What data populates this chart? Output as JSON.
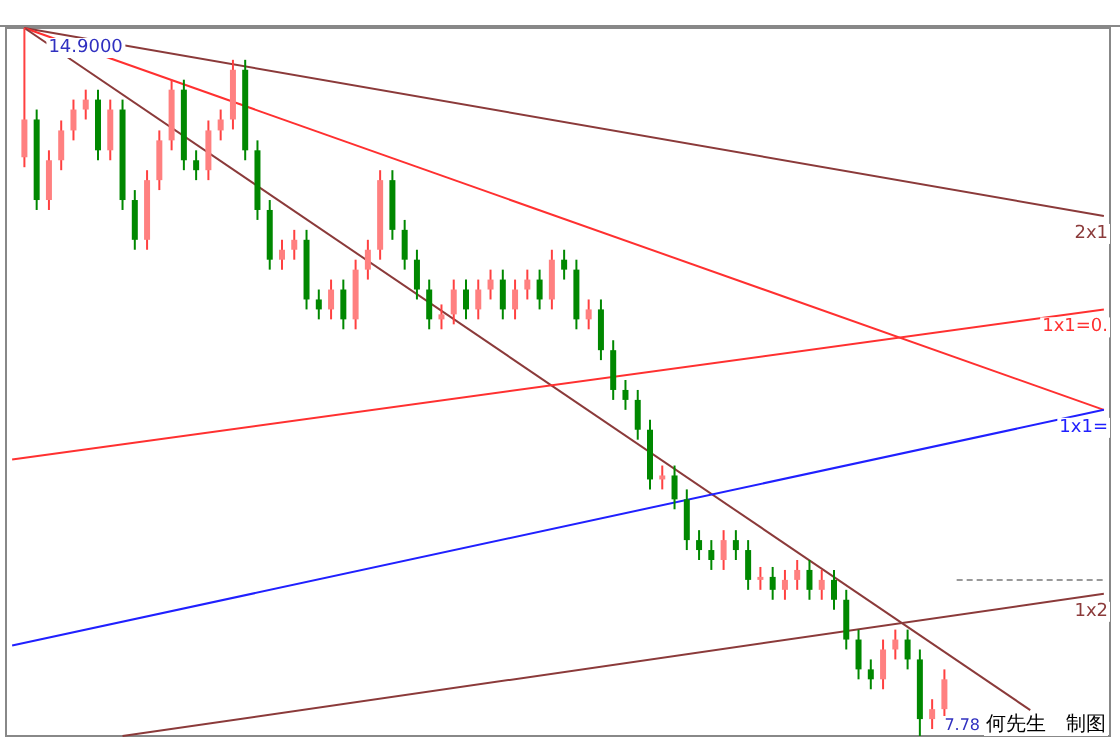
{
  "chart_data": {
    "type": "candlestick",
    "categories": [
      null,
      null,
      null,
      null,
      null,
      null,
      null,
      null,
      null,
      null,
      null,
      null,
      null,
      null,
      null,
      null,
      null,
      null,
      null,
      null,
      null,
      null,
      null,
      null,
      null,
      null,
      null,
      null,
      null,
      null,
      null,
      null,
      null,
      null,
      null,
      null,
      null,
      null,
      null,
      null,
      null,
      null,
      null,
      null,
      null,
      null,
      null,
      null,
      null,
      null,
      null,
      null,
      null,
      null,
      null,
      null,
      null,
      null,
      null,
      null,
      null,
      null,
      null,
      null,
      null,
      null,
      null,
      null,
      null,
      null,
      null,
      null,
      null,
      null,
      null,
      null,
      null,
      null,
      null,
      null,
      null,
      null,
      null,
      null,
      null,
      null,
      null,
      null,
      null,
      null
    ],
    "ylim": [
      7.78,
      14.9
    ],
    "ohlc": [
      null,
      [
        13.6,
        14.9,
        13.5,
        13.98
      ],
      [
        13.98,
        14.08,
        13.07,
        13.17
      ],
      [
        13.17,
        13.67,
        13.07,
        13.57
      ],
      [
        13.57,
        13.97,
        13.47,
        13.87
      ],
      [
        13.87,
        14.18,
        13.77,
        14.08
      ],
      [
        14.08,
        14.28,
        13.98,
        14.18
      ],
      [
        14.18,
        14.28,
        13.57,
        13.67
      ],
      [
        13.67,
        14.18,
        13.57,
        14.08
      ],
      [
        14.08,
        14.18,
        13.07,
        13.17
      ],
      [
        13.17,
        13.27,
        12.67,
        12.77
      ],
      [
        12.77,
        13.47,
        12.67,
        13.37
      ],
      [
        13.37,
        13.87,
        13.27,
        13.77
      ],
      [
        13.77,
        14.38,
        13.67,
        14.28
      ],
      [
        14.28,
        14.38,
        13.47,
        13.57
      ],
      [
        13.57,
        13.67,
        13.37,
        13.47
      ],
      [
        13.47,
        13.97,
        13.37,
        13.87
      ],
      [
        13.87,
        14.08,
        13.77,
        13.98
      ],
      [
        13.98,
        14.58,
        13.88,
        14.48
      ],
      [
        14.48,
        14.58,
        13.57,
        13.67
      ],
      [
        13.67,
        13.77,
        12.97,
        13.07
      ],
      [
        13.07,
        13.17,
        12.47,
        12.57
      ],
      [
        12.57,
        12.77,
        12.47,
        12.67
      ],
      [
        12.67,
        12.87,
        12.57,
        12.77
      ],
      [
        12.77,
        12.87,
        12.07,
        12.17
      ],
      [
        12.17,
        12.27,
        11.97,
        12.07
      ],
      [
        12.07,
        12.37,
        11.97,
        12.27
      ],
      [
        12.27,
        12.37,
        11.87,
        11.97
      ],
      [
        11.97,
        12.57,
        11.87,
        12.47
      ],
      [
        12.47,
        12.77,
        12.37,
        12.67
      ],
      [
        12.67,
        13.47,
        12.57,
        13.37
      ],
      [
        13.37,
        13.47,
        12.77,
        12.87
      ],
      [
        12.87,
        12.97,
        12.47,
        12.57
      ],
      [
        12.57,
        12.67,
        12.17,
        12.27
      ],
      [
        12.27,
        12.37,
        11.87,
        11.97
      ],
      [
        11.97,
        12.12,
        11.87,
        12.02
      ],
      [
        12.02,
        12.37,
        11.92,
        12.27
      ],
      [
        12.27,
        12.37,
        11.97,
        12.07
      ],
      [
        12.07,
        12.37,
        11.97,
        12.27
      ],
      [
        12.27,
        12.47,
        12.17,
        12.37
      ],
      [
        12.37,
        12.47,
        11.97,
        12.07
      ],
      [
        12.07,
        12.37,
        11.97,
        12.27
      ],
      [
        12.27,
        12.47,
        12.17,
        12.37
      ],
      [
        12.37,
        12.47,
        12.07,
        12.17
      ],
      [
        12.17,
        12.67,
        12.07,
        12.57
      ],
      [
        12.57,
        12.67,
        12.37,
        12.47
      ],
      [
        12.47,
        12.57,
        11.87,
        11.97
      ],
      [
        11.97,
        12.17,
        11.87,
        12.07
      ],
      [
        12.07,
        12.17,
        11.56,
        11.66
      ],
      [
        11.66,
        11.76,
        11.16,
        11.26
      ],
      [
        11.26,
        11.36,
        11.06,
        11.16
      ],
      [
        11.16,
        11.26,
        10.76,
        10.86
      ],
      [
        10.86,
        10.96,
        10.26,
        10.36
      ],
      [
        10.36,
        10.5,
        10.26,
        10.4
      ],
      [
        10.4,
        10.5,
        10.06,
        10.16
      ],
      [
        10.16,
        10.26,
        9.65,
        9.75
      ],
      [
        9.75,
        9.85,
        9.55,
        9.65
      ],
      [
        9.65,
        9.75,
        9.45,
        9.55
      ],
      [
        9.55,
        9.85,
        9.45,
        9.75
      ],
      [
        9.75,
        9.85,
        9.55,
        9.65
      ],
      [
        9.65,
        9.75,
        9.25,
        9.35
      ],
      [
        9.35,
        9.48,
        9.25,
        9.38
      ],
      [
        9.38,
        9.48,
        9.15,
        9.25
      ],
      [
        9.25,
        9.45,
        9.15,
        9.35
      ],
      [
        9.35,
        9.55,
        9.25,
        9.45
      ],
      [
        9.45,
        9.55,
        9.15,
        9.25
      ],
      [
        9.25,
        9.45,
        9.15,
        9.35
      ],
      [
        9.35,
        9.45,
        9.05,
        9.15
      ],
      [
        9.15,
        9.25,
        8.65,
        8.75
      ],
      [
        8.75,
        8.85,
        8.35,
        8.45
      ],
      [
        8.45,
        8.55,
        8.25,
        8.35
      ],
      [
        8.35,
        8.75,
        8.25,
        8.65
      ],
      [
        8.65,
        8.85,
        8.55,
        8.75
      ],
      [
        8.75,
        8.85,
        8.45,
        8.55
      ],
      [
        8.55,
        8.65,
        7.78,
        7.95
      ],
      [
        7.95,
        8.15,
        7.85,
        8.05
      ],
      [
        8.05,
        8.45,
        7.95,
        8.35
      ],
      null,
      null,
      null,
      null,
      null,
      null,
      null,
      null,
      null,
      null,
      null,
      null,
      null
    ],
    "series": [
      {
        "type": "line",
        "name": "2x1",
        "color": "#8b3a3a",
        "values": [
          null,
          14.9,
          null,
          null,
          null,
          null,
          null,
          null,
          null,
          null,
          null,
          null,
          null,
          null,
          null,
          null,
          null,
          null,
          null,
          null,
          null,
          null,
          null,
          null,
          null,
          null,
          null,
          null,
          null,
          null,
          null,
          null,
          null,
          null,
          null,
          null,
          null,
          null,
          null,
          null,
          null,
          null,
          null,
          null,
          null,
          null,
          null,
          null,
          null,
          null,
          null,
          null,
          null,
          null,
          null,
          null,
          null,
          null,
          null,
          null,
          null,
          null,
          null,
          null,
          null,
          null,
          null,
          null,
          null,
          null,
          null,
          null,
          null,
          null,
          null,
          null,
          null,
          null,
          null,
          null,
          null,
          null,
          null,
          null,
          null,
          null,
          null,
          null,
          null,
          13.01
        ]
      },
      {
        "type": "line",
        "color": "#ff3030",
        "values": [
          null,
          14.9,
          null,
          null,
          null,
          null,
          null,
          null,
          null,
          null,
          null,
          null,
          null,
          null,
          null,
          null,
          null,
          null,
          null,
          null,
          null,
          null,
          null,
          null,
          null,
          null,
          null,
          null,
          null,
          null,
          null,
          null,
          null,
          null,
          null,
          null,
          null,
          null,
          null,
          null,
          null,
          null,
          null,
          null,
          null,
          null,
          null,
          null,
          null,
          null,
          null,
          null,
          null,
          null,
          null,
          null,
          null,
          null,
          null,
          null,
          null,
          null,
          null,
          null,
          null,
          null,
          null,
          null,
          null,
          null,
          null,
          null,
          null,
          null,
          null,
          null,
          null,
          null,
          null,
          null,
          null,
          null,
          null,
          null,
          null,
          null,
          null,
          null,
          null,
          11.06
        ]
      },
      {
        "type": "line",
        "color": "#8b3a3a",
        "values": [
          null,
          14.9,
          null,
          null,
          null,
          null,
          null,
          null,
          null,
          null,
          null,
          null,
          null,
          null,
          null,
          null,
          null,
          null,
          null,
          null,
          null,
          null,
          null,
          null,
          null,
          null,
          null,
          null,
          null,
          null,
          null,
          null,
          null,
          null,
          null,
          null,
          null,
          null,
          null,
          null,
          null,
          null,
          null,
          null,
          null,
          null,
          null,
          null,
          null,
          null,
          null,
          null,
          null,
          null,
          null,
          null,
          null,
          null,
          null,
          null,
          null,
          null,
          null,
          null,
          null,
          null,
          null,
          null,
          null,
          null,
          null,
          null,
          null,
          null,
          null,
          null,
          null,
          null,
          null,
          null,
          null,
          null,
          null,
          8.04,
          null,
          null,
          null,
          null,
          null,
          null
        ]
      },
      {
        "type": "line",
        "name": "1x1=0.",
        "color": "#ff3030",
        "values": [
          10.56,
          null,
          null,
          null,
          null,
          null,
          null,
          null,
          null,
          null,
          null,
          null,
          null,
          null,
          null,
          null,
          null,
          null,
          null,
          null,
          null,
          null,
          null,
          null,
          null,
          null,
          null,
          null,
          null,
          null,
          null,
          null,
          null,
          null,
          null,
          null,
          null,
          null,
          null,
          null,
          null,
          null,
          null,
          null,
          null,
          null,
          null,
          null,
          null,
          null,
          null,
          null,
          null,
          null,
          null,
          null,
          null,
          null,
          null,
          null,
          null,
          null,
          null,
          null,
          null,
          null,
          null,
          null,
          null,
          null,
          null,
          null,
          null,
          null,
          null,
          null,
          null,
          null,
          null,
          null,
          null,
          null,
          null,
          null,
          null,
          null,
          null,
          null,
          null,
          12.07
        ]
      },
      {
        "type": "line",
        "name": "1x1=",
        "color": "#2020ff",
        "values": [
          8.69,
          null,
          null,
          null,
          null,
          null,
          null,
          null,
          null,
          null,
          null,
          null,
          null,
          null,
          null,
          null,
          null,
          null,
          null,
          null,
          null,
          null,
          null,
          null,
          null,
          null,
          null,
          null,
          null,
          null,
          null,
          null,
          null,
          null,
          null,
          null,
          null,
          null,
          null,
          null,
          null,
          null,
          null,
          null,
          null,
          null,
          null,
          null,
          null,
          null,
          null,
          null,
          null,
          null,
          null,
          null,
          null,
          null,
          null,
          null,
          null,
          null,
          null,
          null,
          null,
          null,
          null,
          null,
          null,
          null,
          null,
          null,
          null,
          null,
          null,
          null,
          null,
          null,
          null,
          null,
          null,
          null,
          null,
          null,
          null,
          null,
          null,
          null,
          null,
          11.06
        ]
      },
      {
        "type": "line",
        "name": "1x2",
        "color": "#8b3a3a",
        "values": [
          null,
          null,
          null,
          null,
          null,
          null,
          null,
          null,
          null,
          7.78,
          null,
          null,
          null,
          null,
          null,
          null,
          null,
          null,
          null,
          null,
          null,
          null,
          null,
          null,
          null,
          null,
          null,
          null,
          null,
          null,
          null,
          null,
          null,
          null,
          null,
          null,
          null,
          null,
          null,
          null,
          null,
          null,
          null,
          null,
          null,
          null,
          null,
          null,
          null,
          null,
          null,
          null,
          null,
          null,
          null,
          null,
          null,
          null,
          null,
          null,
          null,
          null,
          null,
          null,
          null,
          null,
          null,
          null,
          null,
          null,
          null,
          null,
          null,
          null,
          null,
          null,
          null,
          null,
          null,
          null,
          null,
          null,
          null,
          null,
          null,
          null,
          null,
          null,
          null,
          9.21
        ]
      },
      {
        "type": "line",
        "color": "#999999",
        "line_style": "dashed",
        "values": [
          null,
          null,
          null,
          null,
          null,
          null,
          null,
          null,
          null,
          null,
          null,
          null,
          null,
          null,
          null,
          null,
          null,
          null,
          null,
          null,
          null,
          null,
          null,
          null,
          null,
          null,
          null,
          null,
          null,
          null,
          null,
          null,
          null,
          null,
          null,
          null,
          null,
          null,
          null,
          null,
          null,
          null,
          null,
          null,
          null,
          null,
          null,
          null,
          null,
          null,
          null,
          null,
          null,
          null,
          null,
          null,
          null,
          null,
          null,
          null,
          null,
          null,
          null,
          null,
          null,
          null,
          null,
          null,
          null,
          null,
          null,
          null,
          null,
          null,
          null,
          null,
          null,
          9.35,
          null,
          null,
          null,
          null,
          null,
          null,
          null,
          null,
          null,
          null,
          null,
          9.35
        ]
      }
    ],
    "annotations": [
      {
        "text": "14.9000",
        "y": 14.9
      },
      "7.78",
      "何先生　制图"
    ]
  }
}
